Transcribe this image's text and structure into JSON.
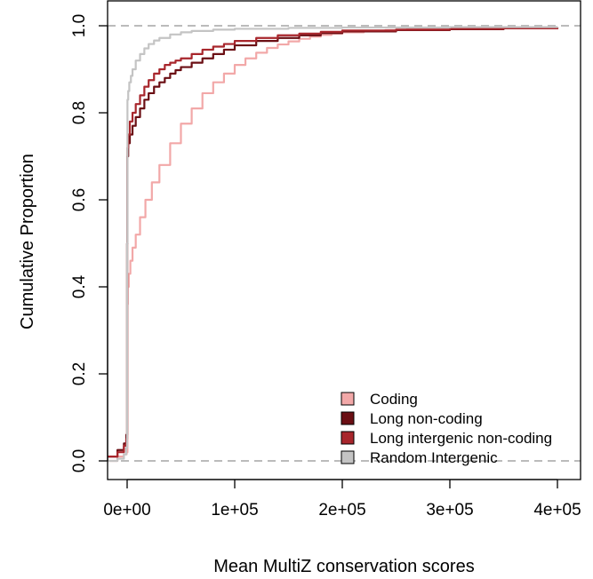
{
  "chart_data": {
    "type": "line",
    "title": "",
    "xlabel": "Mean MultiZ conservation scores",
    "ylabel": "Cumulative Proportion",
    "xlim": [
      -18000,
      400000
    ],
    "ylim": [
      -0.04,
      1.04
    ],
    "x_ticks": [
      0,
      100000,
      200000,
      300000,
      400000
    ],
    "x_tick_labels": [
      "0e+00",
      "1e+05",
      "2e+05",
      "3e+05",
      "4e+05"
    ],
    "y_ticks": [
      0.0,
      0.2,
      0.4,
      0.6,
      0.8,
      1.0
    ],
    "y_tick_labels": [
      "0.0",
      "0.2",
      "0.4",
      "0.6",
      "0.8",
      "1.0"
    ],
    "reference_lines": [
      0.0,
      1.0
    ],
    "reference_line_color": "#bbbbbb",
    "legend_position": "bottom-right",
    "series": [
      {
        "name": "Coding",
        "color": "#f2a8a8",
        "x": [
          -18000,
          -9000,
          -3000,
          -500,
          300,
          600,
          1500,
          3000,
          5000,
          8000,
          12000,
          17000,
          23000,
          30000,
          40000,
          50000,
          60000,
          70000,
          80000,
          90000,
          100000,
          110000,
          120000,
          130000,
          140000,
          150000,
          160000,
          170000,
          180000,
          190000,
          200000,
          220000,
          240000,
          260000,
          300000,
          350000,
          400000
        ],
        "y": [
          0.0,
          0.01,
          0.015,
          0.02,
          0.36,
          0.4,
          0.43,
          0.46,
          0.49,
          0.52,
          0.56,
          0.6,
          0.64,
          0.68,
          0.73,
          0.775,
          0.81,
          0.845,
          0.87,
          0.89,
          0.91,
          0.925,
          0.938,
          0.949,
          0.957,
          0.964,
          0.97,
          0.975,
          0.979,
          0.982,
          0.985,
          0.988,
          0.99,
          0.992,
          0.994,
          0.995,
          0.996
        ]
      },
      {
        "name": "Long non-coding",
        "color": "#6b0f14",
        "x": [
          -18000,
          -9000,
          -3000,
          -800,
          0,
          300,
          1000,
          2500,
          5000,
          8000,
          12000,
          16000,
          20000,
          25000,
          30000,
          35000,
          40000,
          45000,
          50000,
          60000,
          70000,
          80000,
          90000,
          100000,
          120000,
          140000,
          160000,
          180000,
          200000,
          250000,
          300000,
          350000,
          400000
        ],
        "y": [
          0.01,
          0.025,
          0.04,
          0.06,
          0.5,
          0.7,
          0.73,
          0.75,
          0.77,
          0.79,
          0.81,
          0.83,
          0.845,
          0.86,
          0.87,
          0.88,
          0.89,
          0.898,
          0.905,
          0.915,
          0.925,
          0.935,
          0.945,
          0.955,
          0.965,
          0.972,
          0.978,
          0.983,
          0.987,
          0.99,
          0.992,
          0.994,
          0.995
        ]
      },
      {
        "name": "Long intergenic non-coding",
        "color": "#a8262c",
        "x": [
          -18000,
          -9000,
          -3000,
          -800,
          0,
          300,
          1000,
          2500,
          5000,
          8000,
          12000,
          16000,
          20000,
          25000,
          30000,
          35000,
          40000,
          45000,
          50000,
          60000,
          70000,
          80000,
          90000,
          100000,
          120000,
          140000,
          160000,
          180000,
          200000,
          250000,
          300000,
          350000,
          400000
        ],
        "y": [
          0.01,
          0.02,
          0.035,
          0.05,
          0.5,
          0.72,
          0.75,
          0.78,
          0.8,
          0.82,
          0.84,
          0.86,
          0.875,
          0.89,
          0.9,
          0.91,
          0.915,
          0.92,
          0.925,
          0.935,
          0.945,
          0.952,
          0.958,
          0.965,
          0.972,
          0.978,
          0.982,
          0.986,
          0.989,
          0.991,
          0.993,
          0.994,
          0.995
        ]
      },
      {
        "name": "Random Intergenic",
        "color": "#c4c4c4",
        "x": [
          -18000,
          -9000,
          -3000,
          -800,
          0,
          300,
          1000,
          2000,
          3500,
          5000,
          8000,
          12000,
          16000,
          20000,
          25000,
          30000,
          40000,
          50000,
          60000,
          80000,
          100000,
          150000,
          200000,
          300000,
          400000
        ],
        "y": [
          0.0,
          0.005,
          0.015,
          0.03,
          0.5,
          0.83,
          0.85,
          0.87,
          0.885,
          0.9,
          0.92,
          0.935,
          0.948,
          0.958,
          0.966,
          0.972,
          0.98,
          0.985,
          0.988,
          0.991,
          0.993,
          0.995,
          0.996,
          0.997,
          0.998
        ]
      }
    ]
  }
}
